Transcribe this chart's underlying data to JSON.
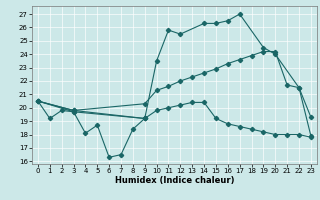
{
  "xlabel": "Humidex (Indice chaleur)",
  "xlim": [
    -0.5,
    23.5
  ],
  "ylim": [
    15.8,
    27.6
  ],
  "yticks": [
    16,
    17,
    18,
    19,
    20,
    21,
    22,
    23,
    24,
    25,
    26,
    27
  ],
  "xticks": [
    0,
    1,
    2,
    3,
    4,
    5,
    6,
    7,
    8,
    9,
    10,
    11,
    12,
    13,
    14,
    15,
    16,
    17,
    18,
    19,
    20,
    21,
    22,
    23
  ],
  "bg_color": "#cce8e8",
  "line_color": "#1a6666",
  "line1_x": [
    0,
    1,
    2,
    3,
    4,
    5,
    6,
    7,
    8,
    9
  ],
  "line1_y": [
    20.5,
    19.2,
    19.8,
    19.7,
    18.1,
    18.7,
    16.3,
    16.5,
    18.4,
    19.2
  ],
  "line2_x": [
    0,
    3,
    9,
    10,
    11,
    12,
    14,
    15,
    16,
    17,
    19,
    20,
    22,
    23
  ],
  "line2_y": [
    20.5,
    19.7,
    19.2,
    23.5,
    25.8,
    25.5,
    26.3,
    26.3,
    26.5,
    27.0,
    24.5,
    24.0,
    21.5,
    19.3
  ],
  "line3_x": [
    0,
    3,
    9,
    10,
    11,
    12,
    13,
    14,
    15,
    16,
    17,
    18,
    19,
    20,
    21,
    22,
    23
  ],
  "line3_y": [
    20.5,
    19.8,
    20.3,
    21.3,
    21.6,
    22.0,
    22.3,
    22.6,
    22.9,
    23.3,
    23.6,
    23.9,
    24.2,
    24.2,
    21.7,
    21.5,
    17.9
  ],
  "line4_x": [
    0,
    3,
    9,
    10,
    11,
    12,
    13,
    14,
    15,
    16,
    17,
    18,
    19,
    20,
    21,
    22,
    23
  ],
  "line4_y": [
    20.5,
    19.8,
    19.2,
    19.8,
    20.0,
    20.2,
    20.4,
    20.4,
    19.2,
    18.8,
    18.6,
    18.4,
    18.2,
    18.0,
    18.0,
    18.0,
    17.8
  ]
}
